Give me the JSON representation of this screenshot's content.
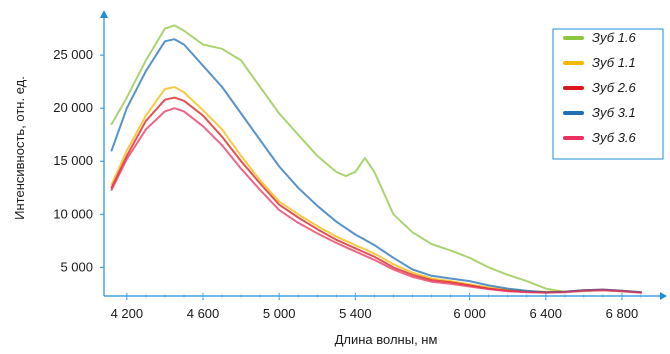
{
  "chart_data": {
    "type": "line",
    "xlabel": "Длина волны, нм",
    "ylabel": "Интенсивность, отн. ед.",
    "xlim": [
      4080,
      7000
    ],
    "ylim": [
      2300,
      28500
    ],
    "x_ticks": [
      {
        "value": 4200,
        "label": "4 200"
      },
      {
        "value": 4600,
        "label": "4 600"
      },
      {
        "value": 5000,
        "label": "5 000"
      },
      {
        "value": 5400,
        "label": "5 400"
      },
      {
        "value": 6000,
        "label": "6 000"
      },
      {
        "value": 6400,
        "label": "6 400"
      },
      {
        "value": 6800,
        "label": "6 800"
      }
    ],
    "y_ticks": [
      {
        "value": 5000,
        "label": "5 000"
      },
      {
        "value": 10000,
        "label": "10 000"
      },
      {
        "value": 15000,
        "label": "15 000"
      },
      {
        "value": 20000,
        "label": "20 000"
      },
      {
        "value": 25000,
        "label": "25 000"
      }
    ],
    "legend_position": "top-right",
    "x": [
      4120,
      4200,
      4300,
      4400,
      4450,
      4500,
      4600,
      4700,
      4800,
      4900,
      5000,
      5100,
      5200,
      5300,
      5350,
      5400,
      5450,
      5500,
      5600,
      5700,
      5800,
      5900,
      6000,
      6100,
      6200,
      6300,
      6400,
      6500,
      6600,
      6700,
      6800,
      6900
    ],
    "series": [
      {
        "name": "Зуб 1.6",
        "color": "#8dc63f",
        "values": [
          18500,
          21000,
          24500,
          27500,
          27800,
          27300,
          26000,
          25600,
          24500,
          22000,
          19500,
          17500,
          15500,
          14000,
          13600,
          14000,
          15300,
          14000,
          10000,
          8300,
          7200,
          6600,
          5900,
          5000,
          4300,
          3700,
          3000,
          2700,
          2750,
          2850,
          2750,
          2650
        ]
      },
      {
        "name": "Зуб 1.1",
        "color": "#f5b800",
        "values": [
          12800,
          16000,
          19300,
          21800,
          22000,
          21500,
          19800,
          18000,
          15500,
          13200,
          11200,
          10000,
          8900,
          7900,
          7500,
          7100,
          6700,
          6300,
          5300,
          4500,
          3950,
          3700,
          3400,
          3100,
          2900,
          2750,
          2700,
          2700,
          2850,
          2850,
          2750,
          2650
        ]
      },
      {
        "name": "Зуб 2.6",
        "color": "#d7191c",
        "values": [
          12500,
          15500,
          18800,
          20800,
          21000,
          20700,
          19300,
          17300,
          15000,
          12900,
          10900,
          9700,
          8600,
          7600,
          7200,
          6800,
          6400,
          6000,
          5000,
          4300,
          3800,
          3600,
          3300,
          3000,
          2800,
          2700,
          2650,
          2700,
          2850,
          2900,
          2800,
          2650
        ]
      },
      {
        "name": "Зуб 3.1",
        "color": "#1f6fb5",
        "values": [
          16000,
          20000,
          23500,
          26300,
          26500,
          26000,
          24000,
          22000,
          19500,
          17000,
          14500,
          12500,
          10800,
          9300,
          8700,
          8100,
          7600,
          7100,
          5900,
          4800,
          4200,
          3950,
          3700,
          3300,
          3000,
          2800,
          2650,
          2700,
          2850,
          2900,
          2800,
          2650
        ]
      },
      {
        "name": "Зуб 3.6",
        "color": "#e8315f",
        "values": [
          12300,
          15200,
          18000,
          19700,
          20000,
          19700,
          18300,
          16500,
          14300,
          12300,
          10400,
          9200,
          8200,
          7300,
          6900,
          6500,
          6100,
          5700,
          4800,
          4100,
          3650,
          3450,
          3200,
          2950,
          2750,
          2650,
          2600,
          2650,
          2800,
          2850,
          2750,
          2600
        ]
      }
    ]
  }
}
